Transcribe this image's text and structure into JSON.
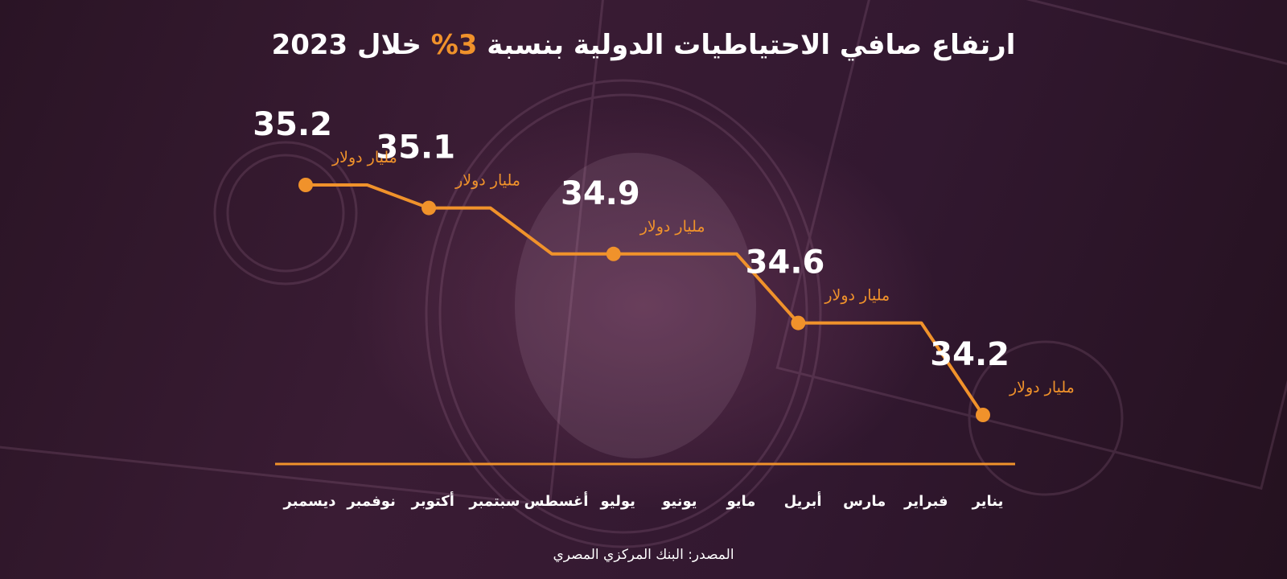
{
  "title": {
    "before": "ارتفاع صافي الاحتياطيات الدولية بنسبة ",
    "highlight": "3%",
    "after": " خلال 2023"
  },
  "source": "المصدر: البنك المركزي المصري",
  "colors": {
    "accent": "#f0922b",
    "text": "#ffffff",
    "background": "#2b1526"
  },
  "chart_data": {
    "type": "line",
    "title": "ارتفاع صافي الاحتياطيات الدولية بنسبة 3% خلال 2023",
    "xlabel": "",
    "ylabel": "",
    "x_direction": "right-to-left",
    "categories": [
      "يناير",
      "فبراير",
      "مارس",
      "أبريل",
      "مايو",
      "يونيو",
      "يوليو",
      "أغسطس",
      "سبتمبر",
      "أكتوبر",
      "نوفمبر",
      "ديسمبر"
    ],
    "unit": "مليار دولار",
    "series": [
      {
        "values": [
          34.2,
          34.6,
          34.6,
          34.6,
          34.9,
          34.9,
          34.9,
          34.9,
          35.1,
          35.1,
          35.2,
          35.2
        ]
      }
    ],
    "labeled_points": [
      {
        "index": 0,
        "value": "34.2",
        "unit": "مليار دولار"
      },
      {
        "index": 3,
        "value": "34.6",
        "unit": "مليار دولار"
      },
      {
        "index": 6,
        "value": "34.9",
        "unit": "مليار دولار"
      },
      {
        "index": 9,
        "value": "35.1",
        "unit": "مليار دولار"
      },
      {
        "index": 11,
        "value": "35.2",
        "unit": "مليار دولار"
      }
    ],
    "grid": false,
    "legend": "none"
  }
}
